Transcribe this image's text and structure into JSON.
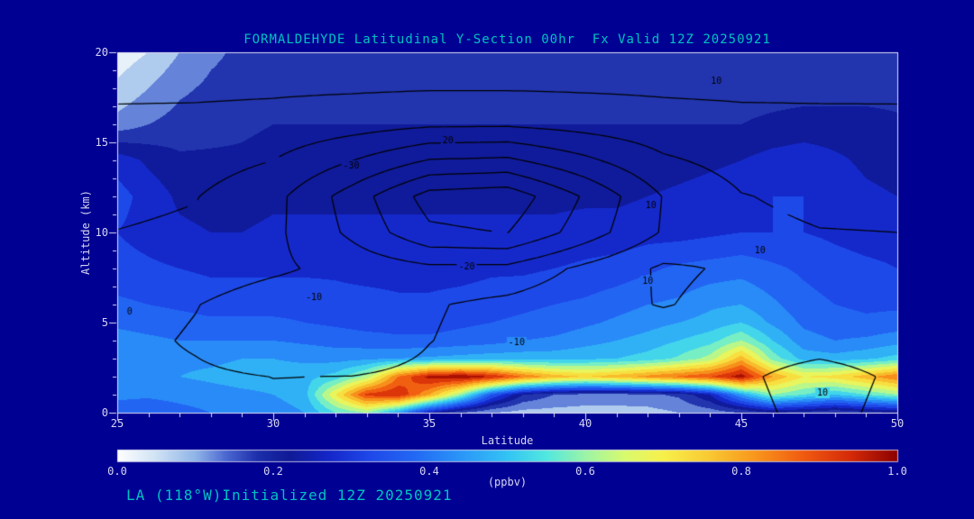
{
  "header": {
    "title": "FORMALDEHYDE Latitudinal Y-Section 00hr  Fx Valid 12Z 20250921"
  },
  "footer": {
    "caption": "LA (118°W)Initialized 12Z 20250921"
  },
  "colorbar": {
    "unit": "(ppbv)",
    "min": 0.0,
    "max": 1.0,
    "ticks": [
      "0.0",
      "0.2",
      "0.4",
      "0.6",
      "0.8",
      "1.0"
    ]
  },
  "colors": {
    "page_bg": "#000093",
    "title_text": "#00c2c2",
    "caption_text": "#00c2c2",
    "axis_text": "#d6d6f2",
    "frame": "#e0e0f2",
    "contour_line": "#000000"
  },
  "chart_data": {
    "type": "heatmap",
    "title": "FORMALDEHYDE Latitudinal Y-Section 00hr  Fx Valid 12Z 20250921",
    "xlabel": "Latitude",
    "ylabel": "Altitude (km)",
    "units": "ppbv",
    "xlim": [
      25,
      50
    ],
    "ylim": [
      0,
      20
    ],
    "x_ticks": [
      25,
      30,
      35,
      40,
      45,
      50
    ],
    "y_ticks": [
      0,
      5,
      10,
      15,
      20
    ],
    "band_step": 0.05,
    "colormap_stops": [
      [
        0.0,
        "#ffffff"
      ],
      [
        0.05,
        "#cfe2f4"
      ],
      [
        0.1,
        "#8fb4e8"
      ],
      [
        0.14,
        "#4a66d0"
      ],
      [
        0.18,
        "#1c2eaa"
      ],
      [
        0.22,
        "#101a96"
      ],
      [
        0.27,
        "#1426c8"
      ],
      [
        0.32,
        "#1e46e8"
      ],
      [
        0.38,
        "#2268f4"
      ],
      [
        0.44,
        "#2b96f8"
      ],
      [
        0.5,
        "#33c4f4"
      ],
      [
        0.55,
        "#52e8e0"
      ],
      [
        0.6,
        "#9cf4a6"
      ],
      [
        0.65,
        "#d8fa6e"
      ],
      [
        0.7,
        "#f8f04a"
      ],
      [
        0.76,
        "#f8c832"
      ],
      [
        0.82,
        "#f8941c"
      ],
      [
        0.88,
        "#f05a10"
      ],
      [
        0.94,
        "#d42a08"
      ],
      [
        1.0,
        "#8c0000"
      ]
    ],
    "field": {
      "lats": [
        25,
        26,
        27,
        28,
        29,
        30,
        31,
        32,
        33,
        34,
        35,
        36,
        37,
        38,
        39,
        40,
        41,
        42,
        43,
        44,
        45,
        46,
        47,
        48,
        49,
        50
      ],
      "altitudes_km": [
        20,
        18,
        16,
        14,
        12,
        10,
        8,
        6,
        5,
        4,
        3,
        2,
        1,
        0
      ],
      "values_ppbv": [
        [
          0.02,
          0.05,
          0.1,
          0.14,
          0.16,
          0.17,
          0.17,
          0.17,
          0.17,
          0.17,
          0.17,
          0.17,
          0.17,
          0.17,
          0.17,
          0.17,
          0.17,
          0.17,
          0.17,
          0.17,
          0.17,
          0.17,
          0.17,
          0.17,
          0.17,
          0.17
        ],
        [
          0.06,
          0.1,
          0.14,
          0.16,
          0.17,
          0.18,
          0.18,
          0.18,
          0.18,
          0.18,
          0.18,
          0.18,
          0.18,
          0.18,
          0.18,
          0.18,
          0.18,
          0.18,
          0.18,
          0.18,
          0.18,
          0.18,
          0.18,
          0.18,
          0.18,
          0.18
        ],
        [
          0.12,
          0.15,
          0.17,
          0.18,
          0.19,
          0.2,
          0.2,
          0.2,
          0.2,
          0.2,
          0.2,
          0.2,
          0.2,
          0.2,
          0.2,
          0.2,
          0.2,
          0.2,
          0.2,
          0.2,
          0.2,
          0.21,
          0.22,
          0.22,
          0.22,
          0.21
        ],
        [
          0.28,
          0.24,
          0.21,
          0.21,
          0.21,
          0.22,
          0.22,
          0.22,
          0.22,
          0.22,
          0.22,
          0.22,
          0.22,
          0.22,
          0.22,
          0.22,
          0.22,
          0.22,
          0.23,
          0.24,
          0.25,
          0.27,
          0.28,
          0.26,
          0.24,
          0.23
        ],
        [
          0.32,
          0.28,
          0.24,
          0.23,
          0.23,
          0.24,
          0.24,
          0.24,
          0.24,
          0.24,
          0.24,
          0.24,
          0.24,
          0.24,
          0.24,
          0.24,
          0.24,
          0.25,
          0.26,
          0.27,
          0.28,
          0.3,
          0.3,
          0.28,
          0.26,
          0.25
        ],
        [
          0.3,
          0.28,
          0.26,
          0.25,
          0.25,
          0.26,
          0.26,
          0.26,
          0.26,
          0.26,
          0.26,
          0.26,
          0.26,
          0.26,
          0.26,
          0.27,
          0.27,
          0.28,
          0.28,
          0.29,
          0.3,
          0.3,
          0.3,
          0.29,
          0.28,
          0.28
        ],
        [
          0.32,
          0.31,
          0.3,
          0.29,
          0.29,
          0.29,
          0.29,
          0.29,
          0.28,
          0.28,
          0.28,
          0.28,
          0.29,
          0.29,
          0.3,
          0.31,
          0.32,
          0.34,
          0.36,
          0.37,
          0.38,
          0.36,
          0.34,
          0.32,
          0.31,
          0.3
        ],
        [
          0.36,
          0.35,
          0.34,
          0.33,
          0.33,
          0.33,
          0.33,
          0.32,
          0.32,
          0.31,
          0.31,
          0.32,
          0.33,
          0.34,
          0.35,
          0.36,
          0.38,
          0.4,
          0.41,
          0.44,
          0.45,
          0.41,
          0.37,
          0.35,
          0.34,
          0.34
        ],
        [
          0.39,
          0.38,
          0.37,
          0.36,
          0.36,
          0.36,
          0.35,
          0.34,
          0.33,
          0.33,
          0.33,
          0.34,
          0.35,
          0.36,
          0.37,
          0.39,
          0.41,
          0.43,
          0.45,
          0.47,
          0.5,
          0.44,
          0.39,
          0.37,
          0.36,
          0.37
        ],
        [
          0.42,
          0.41,
          0.4,
          0.4,
          0.4,
          0.4,
          0.39,
          0.38,
          0.37,
          0.36,
          0.36,
          0.37,
          0.38,
          0.4,
          0.41,
          0.43,
          0.45,
          0.47,
          0.5,
          0.53,
          0.6,
          0.5,
          0.42,
          0.4,
          0.41,
          0.43
        ],
        [
          0.45,
          0.44,
          0.44,
          0.44,
          0.45,
          0.45,
          0.44,
          0.43,
          0.44,
          0.45,
          0.46,
          0.47,
          0.48,
          0.48,
          0.48,
          0.49,
          0.5,
          0.52,
          0.56,
          0.62,
          0.78,
          0.58,
          0.48,
          0.47,
          0.49,
          0.52
        ],
        [
          0.44,
          0.44,
          0.45,
          0.46,
          0.47,
          0.47,
          0.48,
          0.52,
          0.62,
          0.85,
          0.97,
          1.0,
          0.95,
          0.85,
          0.78,
          0.75,
          0.78,
          0.82,
          0.86,
          0.9,
          0.98,
          0.8,
          0.7,
          0.72,
          0.78,
          0.85
        ],
        [
          0.41,
          0.41,
          0.42,
          0.43,
          0.44,
          0.45,
          0.48,
          0.7,
          0.92,
          0.95,
          0.8,
          0.6,
          0.35,
          0.2,
          0.15,
          0.13,
          0.13,
          0.14,
          0.16,
          0.25,
          0.45,
          0.6,
          0.55,
          0.5,
          0.55,
          0.6
        ],
        [
          0.38,
          0.36,
          0.38,
          0.4,
          0.4,
          0.42,
          0.45,
          0.55,
          0.6,
          0.45,
          0.25,
          0.15,
          0.1,
          0.08,
          0.08,
          0.08,
          0.08,
          0.08,
          0.1,
          0.12,
          0.15,
          0.2,
          0.18,
          0.15,
          0.18,
          0.2
        ]
      ]
    },
    "overlay_contours": {
      "lats": [
        25,
        27.5,
        30,
        32.5,
        35,
        37.5,
        40,
        42.5,
        45,
        47.5,
        50
      ],
      "altitudes_km": [
        0,
        2,
        4,
        6,
        8,
        10,
        12,
        14,
        16,
        18,
        20
      ],
      "values": [
        [
          2.0,
          1.9,
          1.8,
          1.8,
          1.9,
          2.0,
          2.0,
          2.0,
          7.5,
          12.9,
          7.5
        ],
        [
          2.7,
          1.5,
          -0.1,
          0.1,
          1.8,
          2.8,
          3.0,
          3.0,
          8.5,
          13.9,
          8.5
        ],
        [
          3.1,
          -1.1,
          -6.8,
          -6.1,
          -0.2,
          3.4,
          4.3,
          4.6,
          5.1,
          5.9,
          5.1
        ],
        [
          4.7,
          0.4,
          -5.7,
          -5.8,
          -0.9,
          2.6,
          7.0,
          10.5,
          7.1,
          6.0,
          6.0
        ],
        [
          7.4,
          5.7,
          1.8,
          -3.4,
          -7.8,
          -7.5,
          2.3,
          11.5,
          8.7,
          7.7,
          7.8
        ],
        [
          9.8,
          8.4,
          2.3,
          -12.0,
          -28.2,
          -30.2,
          -15.1,
          1.0,
          7.9,
          9.7,
          10.0
        ],
        [
          12.2,
          10.4,
          3.1,
          -14.4,
          -34.0,
          -36.4,
          -18.7,
          0.4,
          9.6,
          12.0,
          12.4
        ],
        [
          15.0,
          14.1,
          10.0,
          0.3,
          -10.6,
          -11.9,
          -2.1,
          8.5,
          13.6,
          15.0,
          15.2
        ],
        [
          18.2,
          17.9,
          16.9,
          14.4,
          11.6,
          11.3,
          13.8,
          16.5,
          17.8,
          18.1,
          18.2
        ],
        [
          21.4,
          21.4,
          21.2,
          21.0,
          20.6,
          20.6,
          20.9,
          21.2,
          21.4,
          21.4,
          21.4
        ],
        [
          25.0,
          25.0,
          25.0,
          24.9,
          24.9,
          24.9,
          24.9,
          25.0,
          25.0,
          25.0,
          25.0
        ]
      ],
      "levels": [
        -30,
        -20,
        -10,
        0,
        10,
        20
      ],
      "labels": [
        {
          "text": "10",
          "lat": 44.2,
          "alt": 18.4
        },
        {
          "text": "20",
          "lat": 35.6,
          "alt": 15.1
        },
        {
          "text": "-30",
          "lat": 32.5,
          "alt": 13.7
        },
        {
          "text": "10",
          "lat": 42.1,
          "alt": 11.5
        },
        {
          "text": "10",
          "lat": 45.6,
          "alt": 9.0
        },
        {
          "text": "-20",
          "lat": 36.2,
          "alt": 8.1
        },
        {
          "text": "-10",
          "lat": 31.3,
          "alt": 6.4
        },
        {
          "text": "0",
          "lat": 25.4,
          "alt": 5.6
        },
        {
          "text": "10",
          "lat": 42.0,
          "alt": 7.3
        },
        {
          "text": "-10",
          "lat": 37.8,
          "alt": 3.9
        },
        {
          "text": "10",
          "lat": 47.6,
          "alt": 1.1
        }
      ]
    }
  }
}
